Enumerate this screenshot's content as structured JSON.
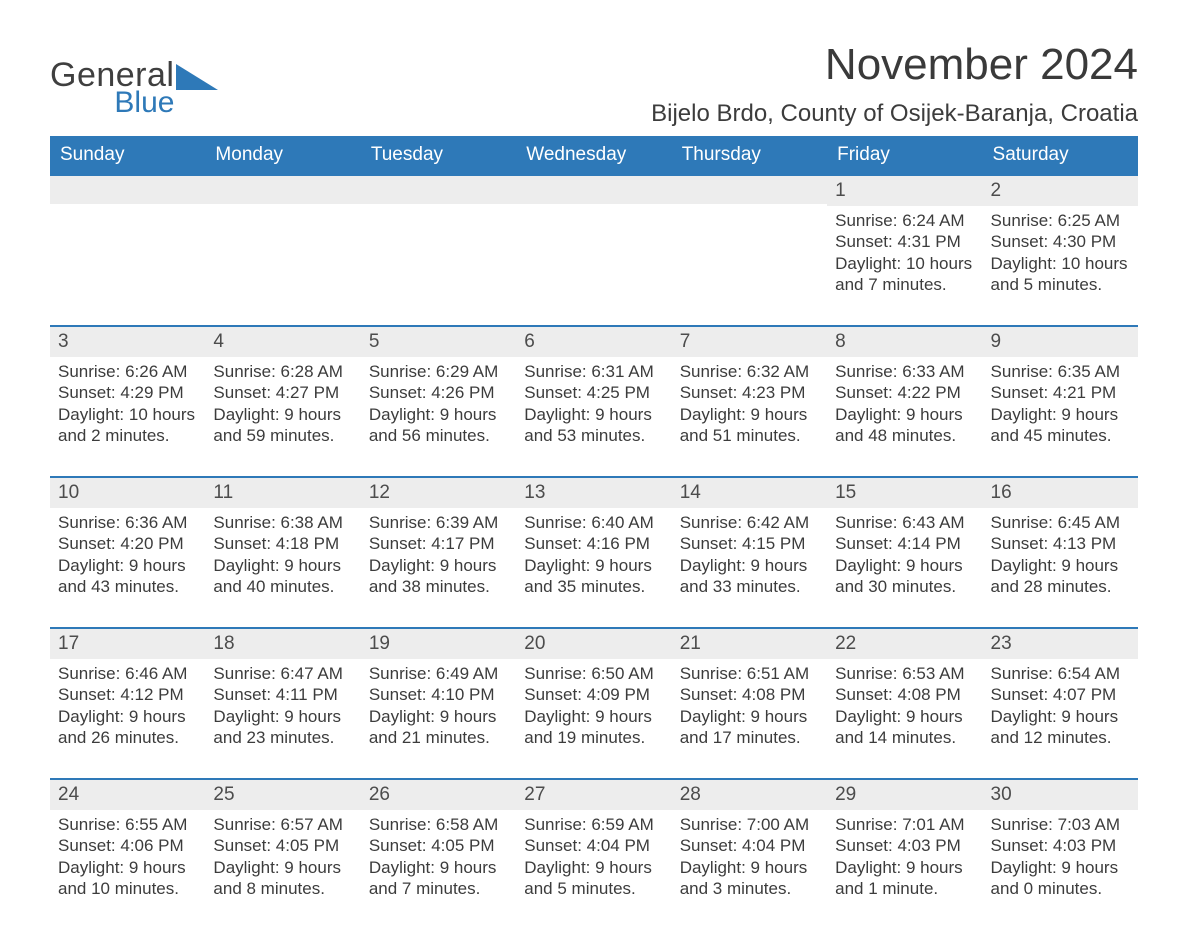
{
  "brand": {
    "text_general": "General",
    "text_blue": "Blue",
    "triangle_color": "#2e79b8",
    "general_color": "#3f3f3f"
  },
  "header": {
    "month_title": "November 2024",
    "location": "Bijelo Brdo, County of Osijek-Baranja, Croatia"
  },
  "colors": {
    "header_bar": "#2e79b8",
    "daynum_bg": "#ededed",
    "text": "#3a3a3a",
    "white": "#ffffff"
  },
  "days_of_week": [
    "Sunday",
    "Monday",
    "Tuesday",
    "Wednesday",
    "Thursday",
    "Friday",
    "Saturday"
  ],
  "weeks": [
    [
      {
        "blank": true
      },
      {
        "blank": true
      },
      {
        "blank": true
      },
      {
        "blank": true
      },
      {
        "blank": true
      },
      {
        "n": "1",
        "sunrise": "Sunrise: 6:24 AM",
        "sunset": "Sunset: 4:31 PM",
        "day1": "Daylight: 10 hours",
        "day2": "and 7 minutes."
      },
      {
        "n": "2",
        "sunrise": "Sunrise: 6:25 AM",
        "sunset": "Sunset: 4:30 PM",
        "day1": "Daylight: 10 hours",
        "day2": "and 5 minutes."
      }
    ],
    [
      {
        "n": "3",
        "sunrise": "Sunrise: 6:26 AM",
        "sunset": "Sunset: 4:29 PM",
        "day1": "Daylight: 10 hours",
        "day2": "and 2 minutes."
      },
      {
        "n": "4",
        "sunrise": "Sunrise: 6:28 AM",
        "sunset": "Sunset: 4:27 PM",
        "day1": "Daylight: 9 hours",
        "day2": "and 59 minutes."
      },
      {
        "n": "5",
        "sunrise": "Sunrise: 6:29 AM",
        "sunset": "Sunset: 4:26 PM",
        "day1": "Daylight: 9 hours",
        "day2": "and 56 minutes."
      },
      {
        "n": "6",
        "sunrise": "Sunrise: 6:31 AM",
        "sunset": "Sunset: 4:25 PM",
        "day1": "Daylight: 9 hours",
        "day2": "and 53 minutes."
      },
      {
        "n": "7",
        "sunrise": "Sunrise: 6:32 AM",
        "sunset": "Sunset: 4:23 PM",
        "day1": "Daylight: 9 hours",
        "day2": "and 51 minutes."
      },
      {
        "n": "8",
        "sunrise": "Sunrise: 6:33 AM",
        "sunset": "Sunset: 4:22 PM",
        "day1": "Daylight: 9 hours",
        "day2": "and 48 minutes."
      },
      {
        "n": "9",
        "sunrise": "Sunrise: 6:35 AM",
        "sunset": "Sunset: 4:21 PM",
        "day1": "Daylight: 9 hours",
        "day2": "and 45 minutes."
      }
    ],
    [
      {
        "n": "10",
        "sunrise": "Sunrise: 6:36 AM",
        "sunset": "Sunset: 4:20 PM",
        "day1": "Daylight: 9 hours",
        "day2": "and 43 minutes."
      },
      {
        "n": "11",
        "sunrise": "Sunrise: 6:38 AM",
        "sunset": "Sunset: 4:18 PM",
        "day1": "Daylight: 9 hours",
        "day2": "and 40 minutes."
      },
      {
        "n": "12",
        "sunrise": "Sunrise: 6:39 AM",
        "sunset": "Sunset: 4:17 PM",
        "day1": "Daylight: 9 hours",
        "day2": "and 38 minutes."
      },
      {
        "n": "13",
        "sunrise": "Sunrise: 6:40 AM",
        "sunset": "Sunset: 4:16 PM",
        "day1": "Daylight: 9 hours",
        "day2": "and 35 minutes."
      },
      {
        "n": "14",
        "sunrise": "Sunrise: 6:42 AM",
        "sunset": "Sunset: 4:15 PM",
        "day1": "Daylight: 9 hours",
        "day2": "and 33 minutes."
      },
      {
        "n": "15",
        "sunrise": "Sunrise: 6:43 AM",
        "sunset": "Sunset: 4:14 PM",
        "day1": "Daylight: 9 hours",
        "day2": "and 30 minutes."
      },
      {
        "n": "16",
        "sunrise": "Sunrise: 6:45 AM",
        "sunset": "Sunset: 4:13 PM",
        "day1": "Daylight: 9 hours",
        "day2": "and 28 minutes."
      }
    ],
    [
      {
        "n": "17",
        "sunrise": "Sunrise: 6:46 AM",
        "sunset": "Sunset: 4:12 PM",
        "day1": "Daylight: 9 hours",
        "day2": "and 26 minutes."
      },
      {
        "n": "18",
        "sunrise": "Sunrise: 6:47 AM",
        "sunset": "Sunset: 4:11 PM",
        "day1": "Daylight: 9 hours",
        "day2": "and 23 minutes."
      },
      {
        "n": "19",
        "sunrise": "Sunrise: 6:49 AM",
        "sunset": "Sunset: 4:10 PM",
        "day1": "Daylight: 9 hours",
        "day2": "and 21 minutes."
      },
      {
        "n": "20",
        "sunrise": "Sunrise: 6:50 AM",
        "sunset": "Sunset: 4:09 PM",
        "day1": "Daylight: 9 hours",
        "day2": "and 19 minutes."
      },
      {
        "n": "21",
        "sunrise": "Sunrise: 6:51 AM",
        "sunset": "Sunset: 4:08 PM",
        "day1": "Daylight: 9 hours",
        "day2": "and 17 minutes."
      },
      {
        "n": "22",
        "sunrise": "Sunrise: 6:53 AM",
        "sunset": "Sunset: 4:08 PM",
        "day1": "Daylight: 9 hours",
        "day2": "and 14 minutes."
      },
      {
        "n": "23",
        "sunrise": "Sunrise: 6:54 AM",
        "sunset": "Sunset: 4:07 PM",
        "day1": "Daylight: 9 hours",
        "day2": "and 12 minutes."
      }
    ],
    [
      {
        "n": "24",
        "sunrise": "Sunrise: 6:55 AM",
        "sunset": "Sunset: 4:06 PM",
        "day1": "Daylight: 9 hours",
        "day2": "and 10 minutes."
      },
      {
        "n": "25",
        "sunrise": "Sunrise: 6:57 AM",
        "sunset": "Sunset: 4:05 PM",
        "day1": "Daylight: 9 hours",
        "day2": "and 8 minutes."
      },
      {
        "n": "26",
        "sunrise": "Sunrise: 6:58 AM",
        "sunset": "Sunset: 4:05 PM",
        "day1": "Daylight: 9 hours",
        "day2": "and 7 minutes."
      },
      {
        "n": "27",
        "sunrise": "Sunrise: 6:59 AM",
        "sunset": "Sunset: 4:04 PM",
        "day1": "Daylight: 9 hours",
        "day2": "and 5 minutes."
      },
      {
        "n": "28",
        "sunrise": "Sunrise: 7:00 AM",
        "sunset": "Sunset: 4:04 PM",
        "day1": "Daylight: 9 hours",
        "day2": "and 3 minutes."
      },
      {
        "n": "29",
        "sunrise": "Sunrise: 7:01 AM",
        "sunset": "Sunset: 4:03 PM",
        "day1": "Daylight: 9 hours",
        "day2": "and 1 minute."
      },
      {
        "n": "30",
        "sunrise": "Sunrise: 7:03 AM",
        "sunset": "Sunset: 4:03 PM",
        "day1": "Daylight: 9 hours",
        "day2": "and 0 minutes."
      }
    ]
  ]
}
